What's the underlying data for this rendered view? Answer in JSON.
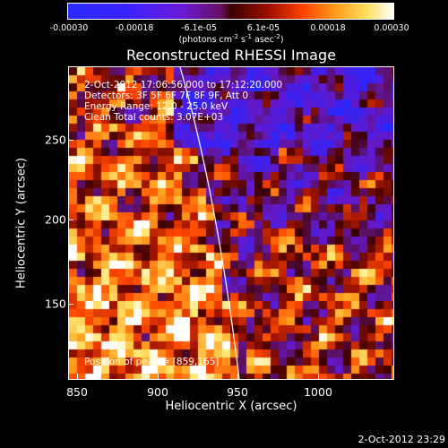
{
  "colorbar": {
    "ticks": [
      "-0.00030",
      "-0.00018",
      "-6.1e-05",
      "6.1e-05",
      "0.00018",
      "0.00030"
    ],
    "units_text": "(photons cm",
    "units_exp1": "-2",
    "units_mid": " s",
    "units_exp2": "-1",
    "units_tail": " asec",
    "units_exp3": "-2",
    "units_close": ")"
  },
  "title": "Reconstructed RHESSI Image",
  "info": {
    "time_range": "2-Oct-2012 17:06:56.000 to 17:12:20.000",
    "detectors": "Detectors: 3F 5F 6F 7F 8F 9F, Att 0",
    "energy": "Energy Range: 12.0 - 25.0 keV",
    "clean": "Clean     Total counts: 3.07E+03"
  },
  "peak_label": "Position of peak = [859,165]",
  "x_axis": {
    "label": "Heliocentric X (arcsec)",
    "ticks": [
      "850",
      "900",
      "950",
      "1000"
    ]
  },
  "y_axis": {
    "label": "Heliocentric Y (arcsec)",
    "ticks": [
      "150",
      "200",
      "250"
    ]
  },
  "timestamp": "2-Oct-2012 23:29",
  "colors": {
    "background": "#000000",
    "foreground": "#ffffff"
  }
}
